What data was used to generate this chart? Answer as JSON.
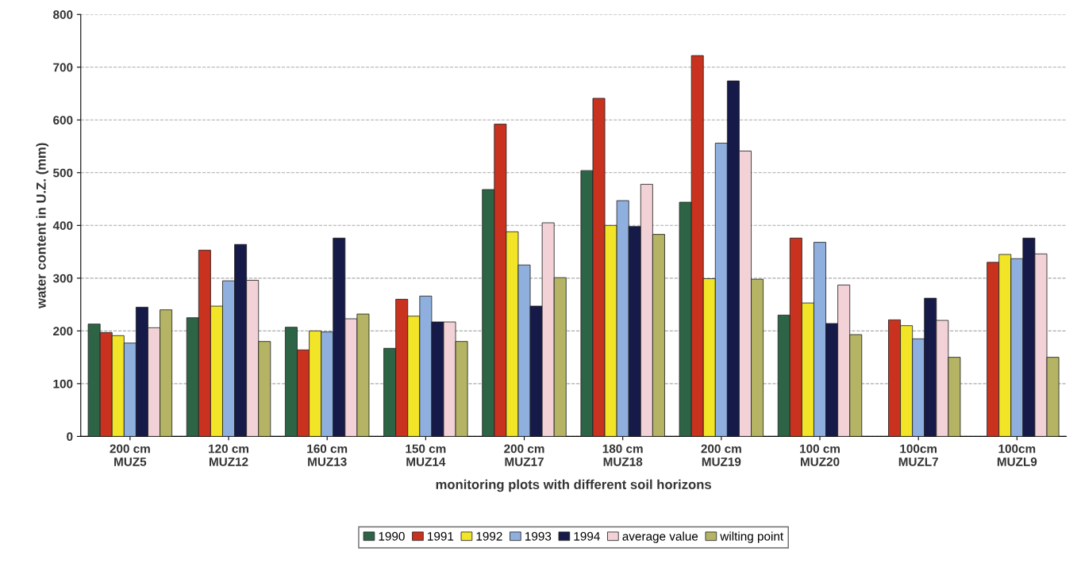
{
  "chart_data": {
    "type": "bar",
    "xlabel": "monitoring plots with different soil horizons",
    "ylabel": "water content in U.Z. (mm)",
    "categories": [
      "200 cm\nMUZ5",
      "120 cm\nMUZ12",
      "160 cm\nMUZ13",
      "150 cm\nMUZ14",
      "200 cm\nMUZ17",
      "180 cm\nMUZ18",
      "200 cm\nMUZ19",
      "100 cm\nMUZ20",
      "100cm\nMUZL7",
      "100cm\nMUZL9"
    ],
    "series": [
      {
        "name": "1990",
        "color": "#2e6446",
        "values": [
          213,
          225,
          207,
          167,
          468,
          504,
          444,
          230,
          null,
          null
        ]
      },
      {
        "name": "1991",
        "color": "#c8321e",
        "values": [
          197,
          353,
          164,
          260,
          592,
          641,
          722,
          376,
          221,
          330
        ]
      },
      {
        "name": "1992",
        "color": "#f2e426",
        "values": [
          191,
          247,
          200,
          228,
          388,
          400,
          299,
          253,
          210,
          345
        ]
      },
      {
        "name": "1993",
        "color": "#8fb0de",
        "values": [
          177,
          295,
          198,
          266,
          325,
          447,
          556,
          368,
          185,
          337
        ]
      },
      {
        "name": "1994",
        "color": "#161a48",
        "values": [
          245,
          364,
          376,
          217,
          247,
          398,
          674,
          214,
          262,
          376
        ]
      },
      {
        "name": "average value",
        "color": "#f2d2d6",
        "values": [
          206,
          296,
          223,
          217,
          405,
          478,
          541,
          287,
          220,
          346
        ]
      },
      {
        "name": "wilting point",
        "color": "#b4b464",
        "values": [
          240,
          180,
          232,
          180,
          301,
          383,
          298,
          193,
          150,
          150
        ]
      }
    ],
    "ylim": [
      0,
      800
    ],
    "yticks": [
      0,
      100,
      200,
      300,
      400,
      500,
      600,
      700,
      800
    ],
    "grid": "y",
    "legend": "bottom"
  }
}
